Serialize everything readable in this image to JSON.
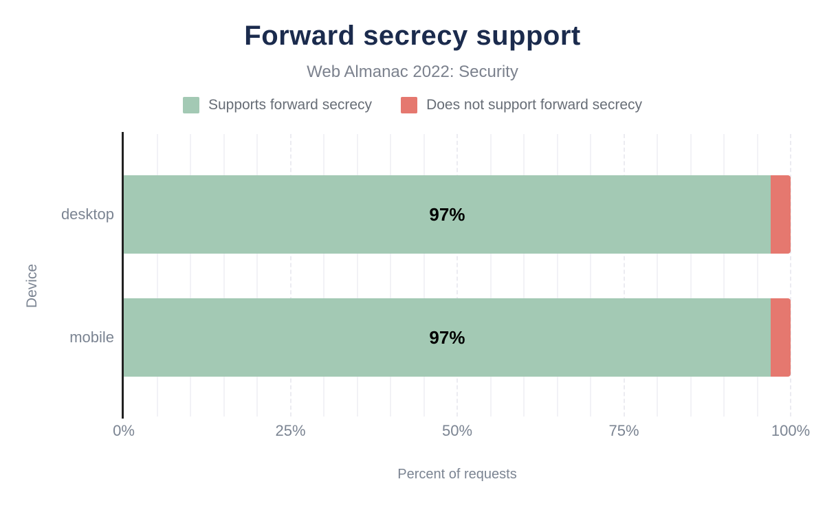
{
  "chart_data": {
    "type": "bar",
    "orientation": "horizontal",
    "stacked": true,
    "title": "Forward secrecy support",
    "subtitle": "Web Almanac 2022: Security",
    "xlabel": "Percent of requests",
    "ylabel": "Device",
    "categories": [
      "desktop",
      "mobile"
    ],
    "series": [
      {
        "name": "Supports forward secrecy",
        "color": "#a3c9b4",
        "values": [
          97,
          97
        ],
        "labels": [
          "97%",
          "97%"
        ]
      },
      {
        "name": "Does not support forward secrecy",
        "color": "#e5786f",
        "values": [
          3,
          3
        ],
        "labels": [
          "",
          ""
        ]
      }
    ],
    "xlim": [
      0,
      100
    ],
    "x_ticks": [
      {
        "label": "0%",
        "value": 0
      },
      {
        "label": "25%",
        "value": 25
      },
      {
        "label": "50%",
        "value": 50
      },
      {
        "label": "75%",
        "value": 75
      },
      {
        "label": "100%",
        "value": 100
      }
    ],
    "grid": "vertical, minor every 5%, major dashed at 25/50/75/100",
    "legend_position": "top"
  },
  "colors": {
    "title": "#1b2b4d",
    "subtitle_text": "#7b818d",
    "legend_text": "#676d76",
    "axis_text": "#7b8492",
    "bar_label": "#000000",
    "axis_line": "#222222",
    "gridline_minor": "#f2f2f6",
    "gridline_major": "#ebebf1",
    "background": "#ffffff"
  }
}
